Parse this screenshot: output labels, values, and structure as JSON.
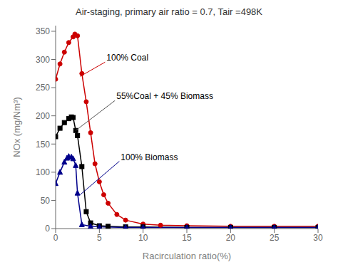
{
  "chart_data": {
    "type": "line",
    "title": "Air-staging, primary air ratio = 0.7, Tair =498K",
    "x_label": "Racirculation ratio(%)",
    "y_label": "NOx (mg/Nm³)",
    "xlim": [
      0,
      30
    ],
    "ylim": [
      0,
      360
    ],
    "xticks": [
      0,
      5,
      10,
      15,
      20,
      25,
      30
    ],
    "yticks": [
      0,
      50,
      100,
      150,
      200,
      250,
      300,
      350
    ],
    "grid": false,
    "series": [
      {
        "name": "100% Coal",
        "color": "#cc0000",
        "marker": "circle",
        "x": [
          0.0,
          0.5,
          1.0,
          1.5,
          2.0,
          2.2,
          2.5,
          3.0,
          3.5,
          4.0,
          4.5,
          5.0,
          5.5,
          6.0,
          7.0,
          8.0,
          10.0,
          12.0,
          15.0,
          20.0,
          25.0,
          30.0
        ],
        "values": [
          265,
          292,
          313,
          330,
          340,
          345,
          342,
          275,
          225,
          170,
          115,
          83,
          60,
          45,
          25,
          15,
          8,
          6,
          5,
          4,
          4,
          4
        ]
      },
      {
        "name": "55%Coal + 45% Biomass",
        "color": "#000000",
        "marker": "square",
        "x": [
          0.0,
          0.5,
          1.0,
          1.5,
          1.8,
          2.0,
          2.3,
          2.5,
          3.0,
          3.5,
          4.0,
          5.0,
          6.0,
          8.0,
          10.0,
          15.0,
          20.0,
          25.0,
          30.0
        ],
        "values": [
          163,
          178,
          188,
          195,
          198,
          197,
          174,
          165,
          110,
          30,
          10,
          5,
          4,
          3,
          3,
          2,
          2,
          2,
          2
        ]
      },
      {
        "name": "100% Biomass",
        "color": "#00008b",
        "marker": "triangle",
        "x": [
          0.0,
          0.5,
          1.0,
          1.3,
          1.5,
          1.8,
          2.0,
          2.3,
          2.5,
          3.0,
          4.0,
          5.0,
          8.0,
          10.0,
          15.0,
          20.0,
          25.0,
          30.0
        ],
        "values": [
          80,
          100,
          118,
          125,
          128,
          127,
          124,
          112,
          63,
          7,
          4,
          3,
          2,
          2,
          2,
          2,
          2,
          2
        ]
      }
    ],
    "annotations": [
      {
        "text": "100% Coal",
        "x": 2.8,
        "y": 270,
        "color": "#cc0000"
      },
      {
        "text": "55%Coal + 45% Biomass",
        "x": 2.3,
        "y": 174,
        "color": "#555555"
      },
      {
        "text": "100% Biomass",
        "x": 2.8,
        "y": 60,
        "color": "#00008b"
      }
    ]
  }
}
